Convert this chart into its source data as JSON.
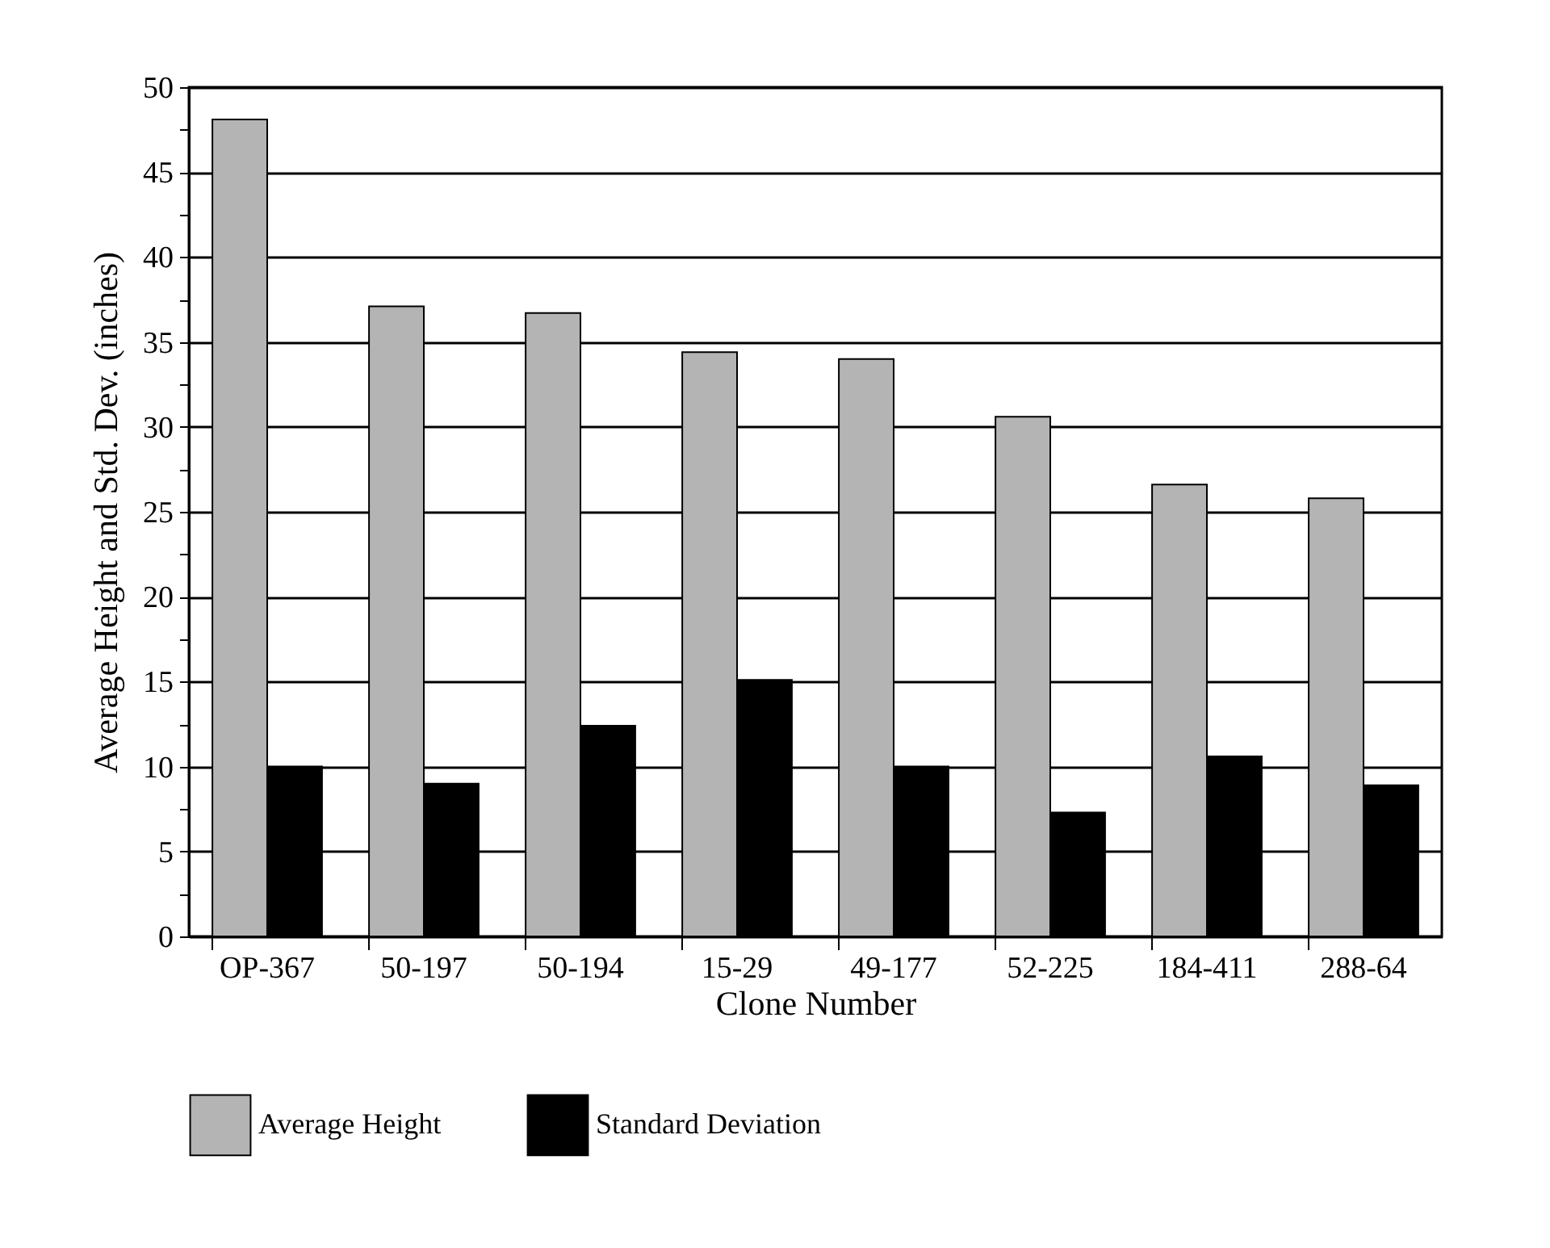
{
  "chart_data": {
    "type": "bar",
    "xlabel": "Clone Number",
    "ylabel": "Average Height and Std. Dev. (inches)",
    "categories": [
      "OP-367",
      "50-197",
      "50-194",
      "15-29",
      "49-177",
      "52-225",
      "184-411",
      "288-64"
    ],
    "series": [
      {
        "name": "Average Height",
        "color": "#b4b4b4",
        "values": [
          48.1,
          37.1,
          36.7,
          34.4,
          34.0,
          30.6,
          26.6,
          25.8
        ]
      },
      {
        "name": "Standard Deviation",
        "color": "#000000",
        "values": [
          10.0,
          9.0,
          12.4,
          15.1,
          10.0,
          7.3,
          10.6,
          8.9
        ]
      }
    ],
    "ylim": [
      0,
      50
    ],
    "yticks": [
      0,
      {
        "value": 2.5,
        "label": null
      },
      5,
      {
        "value": 7.5,
        "label": null
      },
      10,
      {
        "value": 12.5,
        "label": null
      },
      15,
      {
        "value": 17.5,
        "label": null
      },
      20,
      {
        "value": 22.5,
        "label": null
      },
      25,
      {
        "value": 27.5,
        "label": null
      },
      30,
      {
        "value": 32.5,
        "label": null
      },
      35,
      {
        "value": 37.5,
        "label": null
      },
      40,
      {
        "value": 42.5,
        "label": null
      },
      45,
      {
        "value": 47.5,
        "label": null
      },
      50
    ],
    "grid": "y",
    "legend": "bottom"
  }
}
